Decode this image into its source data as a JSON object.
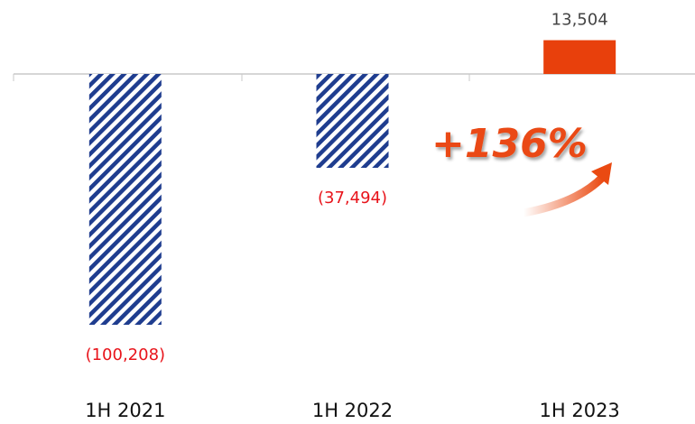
{
  "chart_data": {
    "type": "bar",
    "categories": [
      "1H 2021",
      "1H 2022",
      "1H 2023"
    ],
    "values": [
      -100208,
      -37494,
      13504
    ],
    "value_labels": [
      "(100,208)",
      "(37,494)",
      "13,504"
    ],
    "colors": [
      "#1f3d8f",
      "#1f3d8f",
      "#e8400c"
    ],
    "value_label_colors": [
      "#e8141b",
      "#e8141b",
      "#444444"
    ],
    "annotation": "+136%"
  }
}
